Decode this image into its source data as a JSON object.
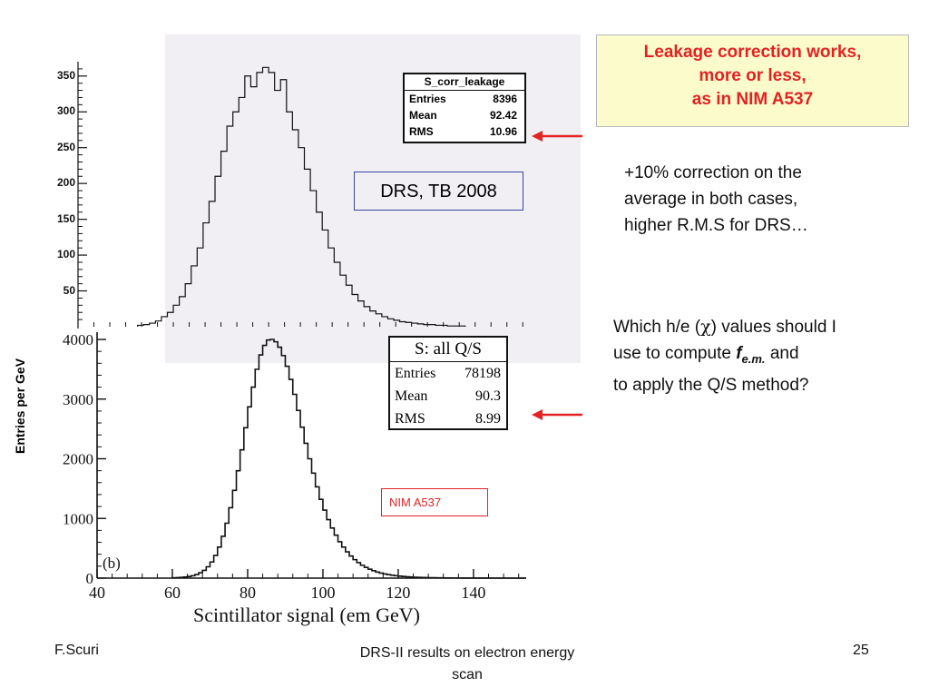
{
  "chart_data": [
    {
      "type": "histogram",
      "stats": {
        "title": "S_corr_leakage",
        "entries_label": "Entries",
        "entries": "8396",
        "mean_label": "Mean",
        "mean": "92.42",
        "rms_label": "RMS",
        "rms": "10.96"
      },
      "annotation": "DRS, TB 2008",
      "y_ticks": [
        50,
        100,
        150,
        200,
        250,
        300,
        350
      ],
      "ylim": [
        0,
        370
      ],
      "xlim": [
        40,
        154
      ],
      "bin_width": 1.5,
      "bins_x": [
        55,
        56.5,
        58,
        59.5,
        61,
        62.5,
        64,
        65.5,
        67,
        68.5,
        70,
        71.5,
        73,
        74.5,
        76,
        77.5,
        79,
        80.5,
        82,
        83.5,
        85,
        86.5,
        88,
        89.5,
        91,
        92.5,
        94,
        95.5,
        97,
        98.5,
        100,
        101.5,
        103,
        104.5,
        106,
        107.5,
        109,
        110.5,
        112,
        113.5,
        115,
        116.5,
        118,
        119.5,
        121,
        122.5,
        124,
        125.5,
        127,
        128.5,
        130,
        131.5,
        133,
        134.5,
        136
      ],
      "values": [
        2,
        3,
        5,
        8,
        14,
        20,
        30,
        42,
        60,
        85,
        110,
        145,
        175,
        210,
        245,
        280,
        300,
        320,
        350,
        335,
        355,
        362,
        355,
        330,
        345,
        300,
        275,
        250,
        220,
        190,
        160,
        135,
        110,
        90,
        72,
        58,
        45,
        36,
        28,
        22,
        18,
        14,
        11,
        9,
        7,
        6,
        5,
        4,
        3,
        3,
        2,
        2,
        1,
        1,
        1
      ]
    },
    {
      "type": "histogram",
      "stats": {
        "title": "S: all Q/S",
        "entries_label": "Entries",
        "entries": "78198",
        "mean_label": "Mean",
        "mean": "90.3",
        "rms_label": "RMS",
        "rms": "8.99"
      },
      "annotation": "NIM A537",
      "panel_label": "(b)",
      "xlabel": "Scintillator signal (em GeV)",
      "ylabel": "Entries per GeV",
      "x_ticks": [
        40,
        60,
        80,
        100,
        120,
        140
      ],
      "y_ticks": [
        0,
        1000,
        2000,
        3000,
        4000
      ],
      "xlim": [
        40,
        154
      ],
      "ylim": [
        0,
        4000
      ],
      "bin_width": 1,
      "bins_x": [
        60,
        61,
        62,
        63,
        64,
        65,
        66,
        67,
        68,
        69,
        70,
        71,
        72,
        73,
        74,
        75,
        76,
        77,
        78,
        79,
        80,
        81,
        82,
        83,
        84,
        85,
        86,
        87,
        88,
        89,
        90,
        91,
        92,
        93,
        94,
        95,
        96,
        97,
        98,
        99,
        100,
        101,
        102,
        103,
        104,
        105,
        106,
        107,
        108,
        109,
        110,
        111,
        112,
        113,
        114,
        115,
        116,
        117,
        118,
        119,
        120,
        121,
        122,
        123,
        124,
        125,
        126,
        127,
        128,
        129,
        130,
        131,
        132,
        133,
        134,
        135,
        136,
        137,
        138,
        139,
        140,
        141,
        142,
        143,
        144,
        145,
        146,
        147,
        148,
        149,
        150,
        151,
        152,
        153
      ],
      "values": [
        5,
        8,
        12,
        18,
        28,
        40,
        60,
        90,
        130,
        190,
        270,
        380,
        520,
        700,
        920,
        1180,
        1470,
        1800,
        2150,
        2520,
        2870,
        3200,
        3500,
        3740,
        3900,
        3990,
        4000,
        3960,
        3870,
        3730,
        3550,
        3330,
        3080,
        2810,
        2530,
        2260,
        2000,
        1760,
        1530,
        1320,
        1140,
        980,
        840,
        720,
        610,
        520,
        440,
        370,
        310,
        260,
        215,
        180,
        150,
        125,
        102,
        85,
        70,
        58,
        48,
        40,
        33,
        27,
        22,
        18,
        15,
        12,
        10,
        8,
        7,
        6,
        5,
        4,
        3,
        3,
        2,
        2,
        2,
        1,
        1,
        1,
        1,
        1,
        1,
        1,
        0,
        0,
        0,
        0,
        0,
        0,
        0,
        0,
        0,
        0
      ]
    }
  ],
  "callout": {
    "line1": "Leakage correction works,",
    "line2": "more or less,",
    "line3": "as in  NIM A537"
  },
  "note1": {
    "line1": "+10% correction on the",
    "line2": "average in both cases,",
    "line3": "higher R.M.S for DRS…"
  },
  "note2": {
    "line1_a": "Which h/e (",
    "line1_chi": "χ",
    "line1_b": ") values should I",
    "line2_a": "use to compute ",
    "line2_f": "f",
    "line2_sub": "e.m.",
    "line2_b": " and",
    "line3": "to apply the Q/S method?"
  },
  "footer": {
    "author": "F.Scuri",
    "title_line1": "DRS-II results on electron energy",
    "title_line2": "scan",
    "page": "25"
  },
  "colors": {
    "accent_red": "#e32222",
    "callout_bg": "#fbfbcc",
    "top_panel_bg": "#f1eef4",
    "drs_border": "#3446a0"
  }
}
